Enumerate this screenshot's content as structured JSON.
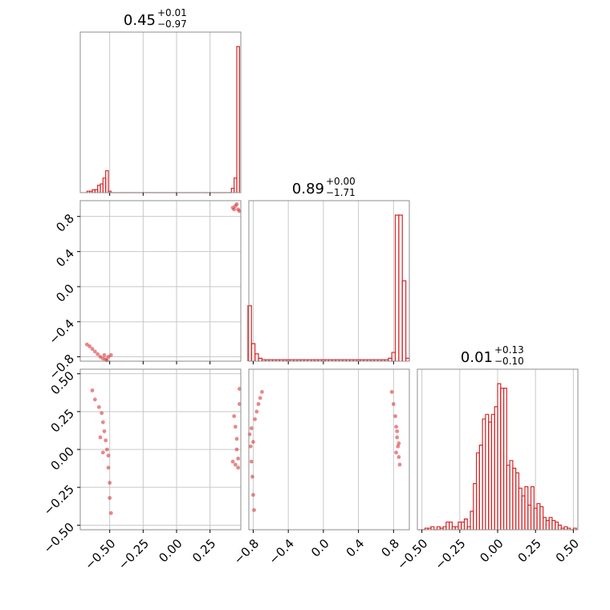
{
  "accent_color": "#d62728",
  "chart_data": [
    {
      "type": "histogram",
      "panel": "marginal-1",
      "title": {
        "value": "0.45",
        "plus": "+0.01",
        "minus": "−0.97"
      },
      "x_range": [
        -0.72,
        0.48
      ],
      "x": [
        -0.66,
        -0.64,
        -0.62,
        -0.6,
        -0.58,
        -0.56,
        -0.54,
        -0.52,
        -0.5,
        -0.48,
        -0.46,
        -0.44,
        -0.42,
        -0.4,
        -0.38,
        -0.36,
        -0.34,
        -0.32,
        -0.3,
        -0.28,
        -0.26,
        -0.24,
        -0.22,
        -0.2,
        -0.18,
        -0.16,
        -0.14,
        -0.12,
        -0.1,
        -0.08,
        -0.06,
        -0.04,
        -0.02,
        0.0,
        0.02,
        0.04,
        0.06,
        0.08,
        0.1,
        0.12,
        0.14,
        0.16,
        0.18,
        0.2,
        0.22,
        0.24,
        0.26,
        0.28,
        0.3,
        0.32,
        0.34,
        0.36,
        0.38,
        0.4,
        0.42,
        0.44,
        0.46
      ],
      "values": [
        0.01,
        0.01,
        0.02,
        0.02,
        0.05,
        0.06,
        0.1,
        0.15,
        0.01,
        0,
        0,
        0,
        0,
        0,
        0,
        0,
        0,
        0,
        0,
        0,
        0,
        0,
        0,
        0,
        0,
        0,
        0,
        0,
        0,
        0,
        0,
        0,
        0,
        0,
        0,
        0,
        0,
        0,
        0,
        0,
        0,
        0,
        0,
        0,
        0,
        0,
        0,
        0,
        0,
        0,
        0,
        0,
        0,
        0,
        0.03,
        0.1,
        1.0
      ],
      "x_grid": [
        -0.5,
        -0.25,
        0.0,
        0.25
      ]
    },
    {
      "type": "scatter",
      "panel": "joint-2-1",
      "x_range": [
        -0.72,
        0.48
      ],
      "y_range": [
        -0.85,
        0.98
      ],
      "x_ticks": [
        -0.5,
        -0.25,
        0.0,
        0.25
      ],
      "y_ticks": [
        0.8,
        0.4,
        0.0,
        -0.4,
        -0.8
      ],
      "y_tick_labels": [
        "0.8",
        "0.4",
        "0.0",
        "−0.4",
        "−0.8"
      ],
      "points": [
        [
          -0.67,
          -0.66
        ],
        [
          -0.65,
          -0.68
        ],
        [
          -0.63,
          -0.71
        ],
        [
          -0.61,
          -0.74
        ],
        [
          -0.59,
          -0.77
        ],
        [
          -0.57,
          -0.8
        ],
        [
          -0.55,
          -0.82
        ],
        [
          -0.53,
          -0.83
        ],
        [
          -0.51,
          -0.8
        ],
        [
          -0.49,
          -0.78
        ],
        [
          -0.54,
          -0.78
        ],
        [
          -0.52,
          -0.84
        ],
        [
          0.42,
          0.9
        ],
        [
          0.44,
          0.92
        ],
        [
          0.46,
          0.88
        ],
        [
          0.45,
          0.94
        ],
        [
          0.47,
          0.86
        ],
        [
          0.43,
          0.88
        ]
      ]
    },
    {
      "type": "histogram",
      "panel": "marginal-2",
      "title": {
        "value": "0.89",
        "plus": "+0.00",
        "minus": "−1.71"
      },
      "x_range": [
        -0.85,
        0.98
      ],
      "x": [
        -0.84,
        -0.8,
        -0.76,
        -0.72,
        -0.68,
        -0.64,
        -0.6,
        -0.56,
        -0.52,
        -0.48,
        -0.44,
        -0.4,
        -0.36,
        -0.32,
        -0.28,
        -0.24,
        -0.2,
        -0.16,
        -0.12,
        -0.08,
        -0.04,
        0.0,
        0.04,
        0.08,
        0.12,
        0.16,
        0.2,
        0.24,
        0.28,
        0.32,
        0.36,
        0.4,
        0.44,
        0.48,
        0.52,
        0.56,
        0.6,
        0.64,
        0.68,
        0.72,
        0.76,
        0.8,
        0.84,
        0.88,
        0.92,
        0.96
      ],
      "values": [
        0.38,
        0.12,
        0.05,
        0.02,
        0.01,
        0.01,
        0.01,
        0.01,
        0.01,
        0.01,
        0.01,
        0.01,
        0.01,
        0.01,
        0.01,
        0.01,
        0.01,
        0.01,
        0.01,
        0.01,
        0.01,
        0.01,
        0.01,
        0.01,
        0.01,
        0.01,
        0.01,
        0.01,
        0.01,
        0.01,
        0.01,
        0.01,
        0.01,
        0.01,
        0.01,
        0.01,
        0.01,
        0.01,
        0.01,
        0.01,
        0.02,
        0.06,
        1.0,
        1.0,
        0.55,
        0.02
      ],
      "x_grid": [
        -0.8,
        -0.4,
        0.0,
        0.4,
        0.8
      ]
    },
    {
      "type": "scatter",
      "panel": "joint-3-1",
      "x_range": [
        -0.72,
        0.48
      ],
      "y_range": [
        -0.53,
        0.53
      ],
      "x_ticks": [
        -0.5,
        -0.25,
        0.0,
        0.25
      ],
      "x_tick_labels": [
        "−0.50",
        "−0.25",
        "0.00",
        "0.25"
      ],
      "y_ticks": [
        0.5,
        0.25,
        0.0,
        -0.25,
        -0.5
      ],
      "y_tick_labels": [
        "0.50",
        "0.25",
        "0.00",
        "−0.25",
        "−0.50"
      ],
      "points": [
        [
          -0.63,
          0.39
        ],
        [
          -0.61,
          0.33
        ],
        [
          -0.58,
          0.28
        ],
        [
          -0.56,
          0.24
        ],
        [
          -0.55,
          0.18
        ],
        [
          -0.54,
          0.12
        ],
        [
          -0.53,
          0.06
        ],
        [
          -0.52,
          0.0
        ],
        [
          -0.51,
          -0.04
        ],
        [
          -0.51,
          -0.12
        ],
        [
          -0.5,
          -0.22
        ],
        [
          -0.5,
          -0.32
        ],
        [
          -0.49,
          -0.42
        ],
        [
          -0.57,
          0.08
        ],
        [
          -0.55,
          -0.02
        ],
        [
          0.43,
          0.22
        ],
        [
          0.44,
          0.15
        ],
        [
          0.45,
          0.07
        ],
        [
          0.45,
          0.0
        ],
        [
          0.46,
          -0.06
        ],
        [
          0.46,
          -0.12
        ],
        [
          0.47,
          0.3
        ],
        [
          0.47,
          0.4
        ],
        [
          0.44,
          -0.1
        ],
        [
          0.42,
          -0.08
        ]
      ]
    },
    {
      "type": "scatter",
      "panel": "joint-3-2",
      "x_range": [
        -0.85,
        0.98
      ],
      "y_range": [
        -0.53,
        0.53
      ],
      "x_ticks": [
        -0.8,
        -0.4,
        0.0,
        0.4,
        0.8
      ],
      "x_tick_labels": [
        "−0.8",
        "−0.4",
        "0.0",
        "0.4",
        "0.8"
      ],
      "points": [
        [
          -0.84,
          0.1
        ],
        [
          -0.83,
          0.02
        ],
        [
          -0.82,
          -0.08
        ],
        [
          -0.81,
          -0.18
        ],
        [
          -0.8,
          -0.3
        ],
        [
          -0.79,
          -0.4
        ],
        [
          -0.78,
          0.2
        ],
        [
          -0.76,
          0.25
        ],
        [
          -0.74,
          0.3
        ],
        [
          -0.72,
          0.34
        ],
        [
          -0.7,
          0.38
        ],
        [
          -0.82,
          0.14
        ],
        [
          -0.8,
          0.05
        ],
        [
          0.78,
          0.38
        ],
        [
          0.8,
          0.3
        ],
        [
          0.82,
          0.22
        ],
        [
          0.83,
          0.15
        ],
        [
          0.84,
          0.08
        ],
        [
          0.85,
          0.02
        ],
        [
          0.86,
          -0.05
        ],
        [
          0.87,
          -0.1
        ],
        [
          0.84,
          0.12
        ],
        [
          0.86,
          0.04
        ],
        [
          0.83,
          -0.02
        ]
      ]
    },
    {
      "type": "histogram",
      "panel": "marginal-3",
      "title": {
        "value": "0.01",
        "plus": "+0.13",
        "minus": "−0.10"
      },
      "x_range": [
        -0.53,
        0.53
      ],
      "x": [
        -0.51,
        -0.49,
        -0.47,
        -0.45,
        -0.43,
        -0.41,
        -0.39,
        -0.37,
        -0.35,
        -0.33,
        -0.31,
        -0.29,
        -0.27,
        -0.25,
        -0.23,
        -0.21,
        -0.19,
        -0.17,
        -0.15,
        -0.13,
        -0.11,
        -0.09,
        -0.07,
        -0.05,
        -0.03,
        -0.01,
        0.01,
        0.03,
        0.05,
        0.07,
        0.09,
        0.11,
        0.13,
        0.15,
        0.17,
        0.19,
        0.21,
        0.23,
        0.25,
        0.27,
        0.29,
        0.31,
        0.33,
        0.35,
        0.37,
        0.39,
        0.41,
        0.43,
        0.45,
        0.47,
        0.49,
        0.51
      ],
      "values": [
        0.0,
        0.0,
        0.01,
        0.01,
        0.02,
        0.0,
        0.02,
        0.01,
        0.02,
        0.05,
        0.05,
        0.02,
        0.02,
        0.05,
        0.05,
        0.07,
        0.02,
        0.12,
        0.3,
        0.5,
        0.55,
        0.72,
        0.75,
        0.7,
        0.75,
        0.8,
        0.95,
        0.92,
        0.92,
        0.42,
        0.45,
        0.4,
        0.37,
        0.27,
        0.22,
        0.28,
        0.16,
        0.28,
        0.14,
        0.17,
        0.15,
        0.08,
        0.06,
        0.08,
        0.06,
        0.05,
        0.03,
        0.01,
        0.02,
        0.01,
        0.0,
        0.01
      ],
      "x_grid": [
        -0.5,
        -0.25,
        0.0,
        0.25,
        0.5
      ],
      "x_tick_labels": [
        "−0.50",
        "−0.25",
        "0.00",
        "0.25",
        "0.50"
      ]
    }
  ]
}
